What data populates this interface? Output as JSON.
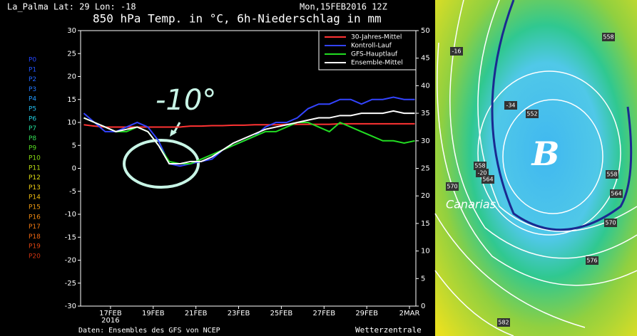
{
  "chart_data": {
    "type": "line",
    "location": "La_Palma  Lat: 29 Lon: -18",
    "run": "Mon,15FEB2016 12Z",
    "title": "850 hPa Temp. in °C, 6h-Niederschlag in mm",
    "source": "Daten: Ensembles des GFS von NCEP",
    "brand": "Wetterzentrale",
    "annotation": "-10°",
    "year_label": "2016",
    "x": [
      15.75,
      16.25,
      16.75,
      17.25,
      17.75,
      18.25,
      18.75,
      19.25,
      19.75,
      20.25,
      20.75,
      21.25,
      21.75,
      22.25,
      22.75,
      23.25,
      23.75,
      24.25,
      24.75,
      25.25,
      25.75,
      26.25,
      26.75,
      27.25,
      27.75,
      28.25,
      28.75,
      29.25,
      29.75,
      30.25,
      30.75,
      31.25
    ],
    "xlim": [
      15.6,
      31.3
    ],
    "xticks": [
      {
        "value": 17,
        "label": "17FEB"
      },
      {
        "value": 19,
        "label": "19FEB"
      },
      {
        "value": 21,
        "label": "21FEB"
      },
      {
        "value": 23,
        "label": "23FEB"
      },
      {
        "value": 25,
        "label": "25FEB"
      },
      {
        "value": 27,
        "label": "27FEB"
      },
      {
        "value": 29,
        "label": "29FEB"
      },
      {
        "value": 31,
        "label": "2MAR"
      }
    ],
    "ylim": [
      -30,
      30
    ],
    "yticks": [
      -30,
      -25,
      -20,
      -15,
      -10,
      -5,
      0,
      5,
      10,
      15,
      20,
      25,
      30
    ],
    "y2lim": [
      0,
      50
    ],
    "y2ticks": [
      0,
      5,
      10,
      15,
      20,
      25,
      30,
      35,
      40,
      45,
      50
    ],
    "members": [
      {
        "name": "P0",
        "color": "#2244ff"
      },
      {
        "name": "P1",
        "color": "#2255ff"
      },
      {
        "name": "P2",
        "color": "#2266ff"
      },
      {
        "name": "P3",
        "color": "#2277ff"
      },
      {
        "name": "P4",
        "color": "#2299ff"
      },
      {
        "name": "P5",
        "color": "#22bbee"
      },
      {
        "name": "P6",
        "color": "#22ccdd"
      },
      {
        "name": "P7",
        "color": "#22dd99"
      },
      {
        "name": "P8",
        "color": "#33dd55"
      },
      {
        "name": "P9",
        "color": "#55dd22"
      },
      {
        "name": "P10",
        "color": "#88dd11"
      },
      {
        "name": "P11",
        "color": "#bbdd11"
      },
      {
        "name": "P12",
        "color": "#dddd11"
      },
      {
        "name": "P13",
        "color": "#eecc11"
      },
      {
        "name": "P14",
        "color": "#eebb11"
      },
      {
        "name": "P15",
        "color": "#ee9911"
      },
      {
        "name": "P16",
        "color": "#ee8811"
      },
      {
        "name": "P17",
        "color": "#ee7711"
      },
      {
        "name": "P18",
        "color": "#ee6611"
      },
      {
        "name": "P19",
        "color": "#dd4411"
      },
      {
        "name": "P20",
        "color": "#cc3311"
      }
    ],
    "series": [
      {
        "name": "30-Jahres-Mittel",
        "color": "#ff3333",
        "values": [
          9.5,
          9.2,
          9,
          9,
          9,
          9,
          9,
          9,
          9,
          9,
          9.2,
          9.2,
          9.3,
          9.3,
          9.4,
          9.4,
          9.5,
          9.5,
          9.5,
          9.6,
          9.6,
          9.6,
          9.6,
          9.6,
          9.7,
          9.7,
          9.7,
          9.7,
          9.7,
          9.7,
          9.7,
          9.7
        ]
      },
      {
        "name": "Kontroll-Lauf",
        "color": "#3344ff",
        "values": [
          12,
          10,
          8,
          8,
          9,
          10,
          9,
          6,
          1,
          0.5,
          1,
          1.5,
          2,
          4,
          5,
          6,
          7,
          9,
          10,
          10,
          11,
          13,
          14,
          14,
          15,
          15,
          14,
          15,
          15,
          15.5,
          15,
          15
        ]
      },
      {
        "name": "GFS-Hauptlauf",
        "color": "#22dd22",
        "values": [
          11,
          10,
          9,
          8,
          8,
          9,
          8,
          5,
          1.5,
          1,
          1,
          2,
          3,
          4,
          5,
          6,
          7,
          8,
          8,
          9,
          10,
          10,
          9,
          8,
          10,
          9,
          8,
          7,
          6,
          6,
          5.5,
          6
        ]
      },
      {
        "name": "Ensemble-Mittel",
        "color": "#ffffff",
        "values": [
          11,
          10,
          9,
          8,
          8.5,
          9,
          8,
          5,
          1,
          1,
          1.5,
          1.5,
          2.5,
          4,
          5.5,
          6.5,
          7.5,
          8.5,
          9,
          9.5,
          10,
          10.5,
          11,
          11,
          11.5,
          11.5,
          12,
          12,
          12,
          12.5,
          12,
          12
        ]
      }
    ]
  },
  "map_labels": [
    "558",
    "-16",
    "-34",
    "552",
    "558",
    "-20",
    "564",
    "570",
    "558",
    "564",
    "570",
    "576",
    "582",
    "B",
    "Canarias"
  ]
}
